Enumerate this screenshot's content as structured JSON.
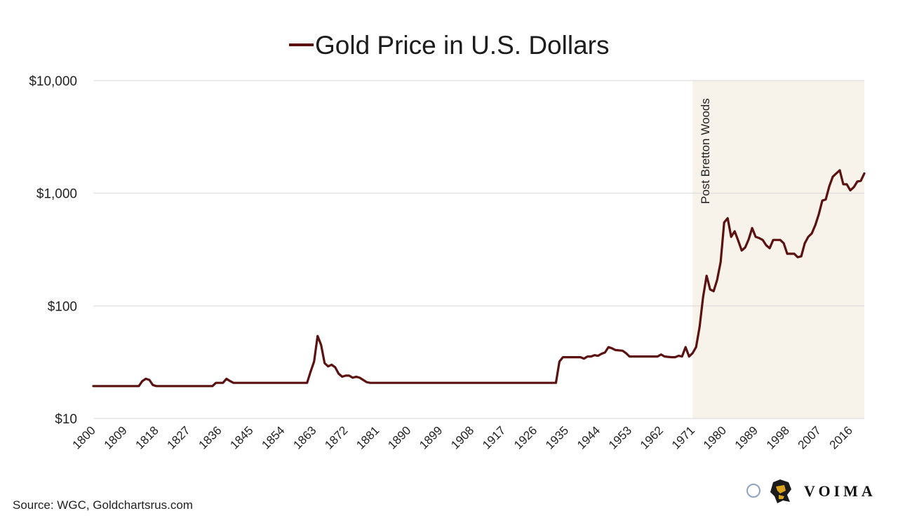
{
  "chart_data": {
    "type": "line",
    "title": "Gold Price in U.S. Dollars",
    "y_scale": "log",
    "ylim": [
      10,
      10000
    ],
    "y_ticks": [
      10,
      100,
      1000,
      10000
    ],
    "y_tick_labels": [
      "$10",
      "$100",
      "$1,000",
      "$10,000"
    ],
    "xlim": [
      1800,
      2019
    ],
    "x_ticks": [
      1800,
      1809,
      1818,
      1827,
      1836,
      1845,
      1854,
      1863,
      1872,
      1881,
      1890,
      1899,
      1908,
      1917,
      1926,
      1935,
      1944,
      1953,
      1962,
      1971,
      1980,
      1989,
      1998,
      2007,
      2016
    ],
    "grid": true,
    "legend": "top-center",
    "highlight_region": {
      "from": 1971,
      "to": 2019,
      "label": "Post Bretton Woods",
      "color": "#f7f2ea"
    },
    "series": [
      {
        "name": "Gold Price in U.S. Dollars",
        "color": "#5c1111",
        "points": [
          [
            1800,
            19.4
          ],
          [
            1813,
            19.4
          ],
          [
            1814,
            21.5
          ],
          [
            1815,
            22.5
          ],
          [
            1816,
            22
          ],
          [
            1817,
            19.8
          ],
          [
            1818,
            19.4
          ],
          [
            1834,
            19.4
          ],
          [
            1835,
            20.7
          ],
          [
            1837,
            20.7
          ],
          [
            1838,
            22.5
          ],
          [
            1839,
            21.5
          ],
          [
            1840,
            20.7
          ],
          [
            1861,
            20.7
          ],
          [
            1862,
            26
          ],
          [
            1863,
            32
          ],
          [
            1864,
            54
          ],
          [
            1865,
            45
          ],
          [
            1866,
            31
          ],
          [
            1867,
            29
          ],
          [
            1868,
            30
          ],
          [
            1869,
            28.5
          ],
          [
            1870,
            25
          ],
          [
            1871,
            23.5
          ],
          [
            1872,
            24
          ],
          [
            1873,
            24
          ],
          [
            1874,
            23
          ],
          [
            1875,
            23.5
          ],
          [
            1876,
            23
          ],
          [
            1877,
            22
          ],
          [
            1878,
            21
          ],
          [
            1879,
            20.7
          ],
          [
            1932,
            20.7
          ],
          [
            1933,
            32
          ],
          [
            1934,
            35
          ],
          [
            1939,
            35
          ],
          [
            1940,
            34
          ],
          [
            1941,
            35.5
          ],
          [
            1942,
            35.5
          ],
          [
            1943,
            36.5
          ],
          [
            1944,
            36
          ],
          [
            1945,
            37.5
          ],
          [
            1946,
            38.5
          ],
          [
            1947,
            43
          ],
          [
            1948,
            42
          ],
          [
            1949,
            40.5
          ],
          [
            1951,
            40
          ],
          [
            1952,
            38
          ],
          [
            1953,
            35.5
          ],
          [
            1961,
            35.5
          ],
          [
            1962,
            37
          ],
          [
            1963,
            35.5
          ],
          [
            1965,
            35
          ],
          [
            1966,
            35
          ],
          [
            1967,
            36
          ],
          [
            1968,
            35.5
          ],
          [
            1969,
            43
          ],
          [
            1970,
            35.5
          ],
          [
            1971,
            38
          ],
          [
            1972,
            43
          ],
          [
            1973,
            65
          ],
          [
            1974,
            120
          ],
          [
            1975,
            185
          ],
          [
            1976,
            140
          ],
          [
            1977,
            135
          ],
          [
            1978,
            170
          ],
          [
            1979,
            245
          ],
          [
            1980,
            550
          ],
          [
            1981,
            600
          ],
          [
            1982,
            410
          ],
          [
            1983,
            460
          ],
          [
            1984,
            380
          ],
          [
            1985,
            310
          ],
          [
            1986,
            330
          ],
          [
            1987,
            390
          ],
          [
            1988,
            490
          ],
          [
            1989,
            410
          ],
          [
            1990,
            400
          ],
          [
            1991,
            385
          ],
          [
            1992,
            345
          ],
          [
            1993,
            325
          ],
          [
            1994,
            385
          ],
          [
            1995,
            385
          ],
          [
            1996,
            385
          ],
          [
            1997,
            360
          ],
          [
            1998,
            290
          ],
          [
            1999,
            290
          ],
          [
            2000,
            290
          ],
          [
            2001,
            270
          ],
          [
            2002,
            275
          ],
          [
            2003,
            360
          ],
          [
            2004,
            410
          ],
          [
            2005,
            440
          ],
          [
            2006,
            520
          ],
          [
            2007,
            650
          ],
          [
            2008,
            860
          ],
          [
            2009,
            880
          ],
          [
            2010,
            1150
          ],
          [
            2011,
            1400
          ],
          [
            2012,
            1500
          ],
          [
            2013,
            1600
          ],
          [
            2014,
            1200
          ],
          [
            2015,
            1200
          ],
          [
            2016,
            1060
          ],
          [
            2017,
            1130
          ],
          [
            2018,
            1270
          ],
          [
            2019,
            1290
          ],
          [
            2020,
            1500
          ]
        ]
      }
    ]
  },
  "footer": {
    "source": "Source: WGC, Goldchartsrus.com",
    "brand": "VOIMA"
  },
  "colors": {
    "line": "#5c1111",
    "gridline": "#d9d9d9",
    "highlight": "#f7f2ea"
  }
}
